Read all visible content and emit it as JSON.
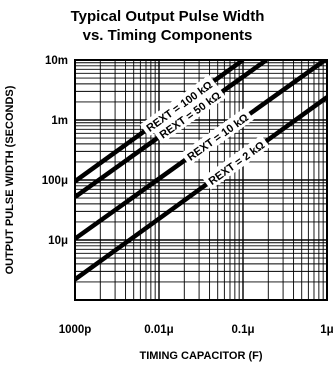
{
  "chart_data": {
    "type": "line",
    "title_line1": "Typical Output Pulse Width",
    "title_line2": "vs. Timing Components",
    "xlabel": "TIMING CAPACITOR (F)",
    "ylabel": "OUTPUT PULSE WIDTH (SECONDS)",
    "x_scale": "log",
    "y_scale": "log",
    "xlim": [
      1e-09,
      1e-06
    ],
    "ylim": [
      1e-06,
      0.01
    ],
    "grid": true,
    "x_ticks": [
      {
        "value": 1e-09,
        "label": "1000p"
      },
      {
        "value": 1e-08,
        "label": "0.01μ"
      },
      {
        "value": 1e-07,
        "label": "0.1μ"
      },
      {
        "value": 1e-06,
        "label": "1μ"
      }
    ],
    "y_ticks": [
      {
        "value": 0.01,
        "label": "10m"
      },
      {
        "value": 0.001,
        "label": "1m"
      },
      {
        "value": 0.0001,
        "label": "100μ"
      },
      {
        "value": 1e-05,
        "label": "10μ"
      }
    ],
    "series": [
      {
        "name": "REXT = 100 kΩ",
        "label_pos": 0.62,
        "points": [
          [
            1e-09,
            9.5e-05
          ],
          [
            1e-07,
            0.01
          ]
        ]
      },
      {
        "name": "REXT = 50 kΩ",
        "label_pos": 0.6,
        "points": [
          [
            1e-09,
            5.2e-05
          ],
          [
            1.9e-07,
            0.01
          ]
        ]
      },
      {
        "name": "REXT = 10 kΩ",
        "label_pos": 0.57,
        "points": [
          [
            1e-09,
            1.05e-05
          ],
          [
            9.5e-07,
            0.01
          ]
        ]
      },
      {
        "name": "REXT = 2 kΩ",
        "label_pos": 0.64,
        "points": [
          [
            1e-09,
            2.2e-06
          ],
          [
            1e-06,
            0.0024
          ]
        ]
      }
    ]
  }
}
